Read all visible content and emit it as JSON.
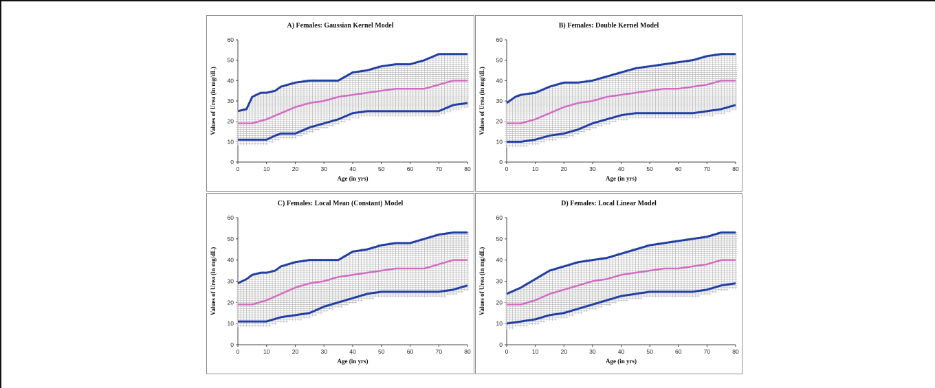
{
  "colors": {
    "scatter": "#bdbdbd",
    "outer_band": "#1f3fa6",
    "median": "#d36ac3",
    "panel_border": "#8c8c8c",
    "axis": "#444444"
  },
  "chart_data": [
    {
      "type": "scatter",
      "title": "A) Females: Gaussian Kernel Model",
      "xlabel": "Age (in yrs)",
      "ylabel": "Values of Urea (in mg/dL)",
      "xlim": [
        0,
        80
      ],
      "ylim": [
        0,
        60
      ],
      "xticks": [
        0,
        10,
        20,
        30,
        40,
        50,
        60,
        70,
        80
      ],
      "yticks": [
        0,
        10,
        20,
        30,
        40,
        50,
        60
      ],
      "grid": false,
      "series": [
        {
          "role": "upper",
          "x": [
            0,
            3,
            5,
            8,
            10,
            13,
            15,
            20,
            25,
            30,
            35,
            40,
            45,
            50,
            55,
            60,
            65,
            70,
            75,
            80
          ],
          "y": [
            25,
            26,
            32,
            34,
            34,
            35,
            37,
            39,
            40,
            40,
            40,
            44,
            45,
            47,
            48,
            48,
            50,
            53,
            53,
            53
          ]
        },
        {
          "role": "median",
          "x": [
            0,
            5,
            10,
            15,
            20,
            25,
            30,
            35,
            40,
            45,
            50,
            55,
            60,
            65,
            70,
            75,
            80
          ],
          "y": [
            19,
            19,
            21,
            24,
            27,
            29,
            30,
            32,
            33,
            34,
            35,
            36,
            36,
            36,
            38,
            40,
            40
          ]
        },
        {
          "role": "lower",
          "x": [
            0,
            3,
            5,
            8,
            10,
            13,
            15,
            20,
            25,
            30,
            35,
            40,
            45,
            50,
            55,
            60,
            65,
            70,
            75,
            80
          ],
          "y": [
            11,
            11,
            11,
            11,
            11,
            13,
            14,
            14,
            17,
            19,
            21,
            24,
            25,
            25,
            25,
            25,
            25,
            25,
            28,
            29
          ]
        }
      ]
    },
    {
      "type": "scatter",
      "title": "B) Females: Double Kernel Model",
      "xlabel": "Age (in yrs)",
      "ylabel": "Values of Urea (in mg/dL)",
      "xlim": [
        0,
        80
      ],
      "ylim": [
        0,
        60
      ],
      "xticks": [
        0,
        10,
        20,
        30,
        40,
        50,
        60,
        70,
        80
      ],
      "yticks": [
        0,
        10,
        20,
        30,
        40,
        50,
        60
      ],
      "grid": false,
      "series": [
        {
          "role": "upper",
          "x": [
            0,
            3,
            5,
            10,
            15,
            20,
            25,
            30,
            35,
            40,
            45,
            50,
            55,
            60,
            65,
            70,
            75,
            80
          ],
          "y": [
            29,
            32,
            33,
            34,
            37,
            39,
            39,
            40,
            42,
            44,
            46,
            47,
            48,
            49,
            50,
            52,
            53,
            53
          ]
        },
        {
          "role": "median",
          "x": [
            0,
            5,
            10,
            15,
            20,
            25,
            30,
            35,
            40,
            45,
            50,
            55,
            60,
            65,
            70,
            75,
            80
          ],
          "y": [
            19,
            19,
            21,
            24,
            27,
            29,
            30,
            32,
            33,
            34,
            35,
            36,
            36,
            37,
            38,
            40,
            40
          ]
        },
        {
          "role": "lower",
          "x": [
            0,
            5,
            10,
            15,
            20,
            25,
            30,
            35,
            40,
            45,
            50,
            55,
            60,
            65,
            70,
            75,
            80
          ],
          "y": [
            10,
            10,
            11,
            13,
            14,
            16,
            19,
            21,
            23,
            24,
            24,
            24,
            24,
            24,
            25,
            26,
            28
          ]
        }
      ]
    },
    {
      "type": "scatter",
      "title": "C) Females: Local Mean (Constant) Model",
      "xlabel": "Age (in yrs)",
      "ylabel": "Values of Urea (in mg/dL)",
      "xlim": [
        0,
        80
      ],
      "ylim": [
        0,
        60
      ],
      "xticks": [
        0,
        10,
        20,
        30,
        40,
        50,
        60,
        70,
        80
      ],
      "yticks": [
        0,
        10,
        20,
        30,
        40,
        50,
        60
      ],
      "grid": false,
      "series": [
        {
          "role": "upper",
          "x": [
            0,
            3,
            5,
            8,
            10,
            13,
            15,
            20,
            25,
            30,
            35,
            40,
            45,
            50,
            55,
            60,
            65,
            70,
            75,
            80
          ],
          "y": [
            29,
            31,
            33,
            34,
            34,
            35,
            37,
            39,
            40,
            40,
            40,
            44,
            45,
            47,
            48,
            48,
            50,
            52,
            53,
            53
          ]
        },
        {
          "role": "median",
          "x": [
            0,
            5,
            10,
            15,
            20,
            25,
            30,
            35,
            40,
            45,
            50,
            55,
            60,
            65,
            70,
            75,
            80
          ],
          "y": [
            19,
            19,
            21,
            24,
            27,
            29,
            30,
            32,
            33,
            34,
            35,
            36,
            36,
            36,
            38,
            40,
            40
          ]
        },
        {
          "role": "lower",
          "x": [
            0,
            5,
            10,
            15,
            20,
            25,
            30,
            35,
            40,
            45,
            50,
            55,
            60,
            65,
            70,
            75,
            80
          ],
          "y": [
            11,
            11,
            11,
            13,
            14,
            15,
            18,
            20,
            22,
            24,
            25,
            25,
            25,
            25,
            25,
            26,
            28
          ]
        }
      ]
    },
    {
      "type": "scatter",
      "title": "D) Females: Local Linear Model",
      "xlabel": "Age (in yrs)",
      "ylabel": "Values of Urea (in mg/dL)",
      "xlim": [
        0,
        80
      ],
      "ylim": [
        0,
        60
      ],
      "xticks": [
        0,
        10,
        20,
        30,
        40,
        50,
        60,
        70,
        80
      ],
      "yticks": [
        0,
        10,
        20,
        30,
        40,
        50,
        60
      ],
      "grid": false,
      "series": [
        {
          "role": "upper",
          "x": [
            0,
            5,
            10,
            15,
            20,
            25,
            30,
            35,
            40,
            45,
            50,
            55,
            60,
            65,
            70,
            75,
            80
          ],
          "y": [
            24,
            27,
            31,
            35,
            37,
            39,
            40,
            41,
            43,
            45,
            47,
            48,
            49,
            50,
            51,
            53,
            53
          ]
        },
        {
          "role": "median",
          "x": [
            0,
            5,
            10,
            15,
            20,
            25,
            30,
            35,
            40,
            45,
            50,
            55,
            60,
            65,
            70,
            75,
            80
          ],
          "y": [
            19,
            19,
            21,
            24,
            26,
            28,
            30,
            31,
            33,
            34,
            35,
            36,
            36,
            37,
            38,
            40,
            40
          ]
        },
        {
          "role": "lower",
          "x": [
            0,
            5,
            10,
            15,
            20,
            25,
            30,
            35,
            40,
            45,
            50,
            55,
            60,
            65,
            70,
            75,
            80
          ],
          "y": [
            10,
            11,
            12,
            14,
            15,
            17,
            19,
            21,
            23,
            24,
            25,
            25,
            25,
            25,
            26,
            28,
            29
          ]
        }
      ]
    }
  ]
}
